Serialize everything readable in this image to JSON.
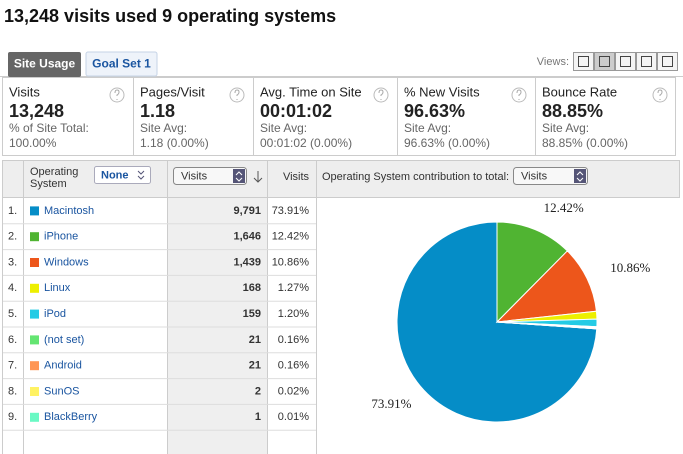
{
  "title": "13,248 visits used 9 operating systems",
  "tabs": [
    "Site Usage",
    "Goal Set 1"
  ],
  "views_label": "Views:",
  "metrics": [
    {
      "label": "Visits",
      "value": "13,248",
      "sub_label": "% of Site Total:",
      "sub_value": "100.00%"
    },
    {
      "label": "Pages/Visit",
      "value": "1.18",
      "sub_label": "Site Avg:",
      "sub_value": "1.18 (0.00%)"
    },
    {
      "label": "Avg. Time on Site",
      "value": "00:01:02",
      "sub_label": "Site Avg:",
      "sub_value": "00:01:02 (0.00%)"
    },
    {
      "label": "% New Visits",
      "value": "96.63%",
      "sub_label": "Site Avg:",
      "sub_value": "96.63% (0.00%)"
    },
    {
      "label": "Bounce Rate",
      "value": "88.85%",
      "sub_label": "Site Avg:",
      "sub_value": "88.85% (0.00%)"
    }
  ],
  "table": {
    "headers": {
      "dimension": [
        "Operating",
        "System"
      ],
      "segment": "None",
      "sort_metric": "Visits",
      "metric": "Visits",
      "contribution": "Operating System contribution to total:",
      "pie_metric": "Visits"
    },
    "rows": [
      {
        "index": "1.",
        "name": "Macintosh",
        "color": "#058dc7",
        "visits": {
          "value": 9791,
          "label": "9,791"
        },
        "percent": {
          "value": 73.91,
          "label": "73.91%"
        }
      },
      {
        "index": "2.",
        "name": "iPhone",
        "color": "#50b432",
        "visits": {
          "value": 1646,
          "label": "1,646"
        },
        "percent": {
          "value": 12.42,
          "label": "12.42%"
        }
      },
      {
        "index": "3.",
        "name": "Windows",
        "color": "#ed561b",
        "visits": {
          "value": 1439,
          "label": "1,439"
        },
        "percent": {
          "value": 10.86,
          "label": "10.86%"
        }
      },
      {
        "index": "4.",
        "name": "Linux",
        "color": "#edef00",
        "visits": {
          "value": 168,
          "label": "168"
        },
        "percent": {
          "value": 1.27,
          "label": "1.27%"
        }
      },
      {
        "index": "5.",
        "name": "iPod",
        "color": "#24cbe5",
        "visits": {
          "value": 159,
          "label": "159"
        },
        "percent": {
          "value": 1.2,
          "label": "1.20%"
        }
      },
      {
        "index": "6.",
        "name": "(not set)",
        "color": "#64e572",
        "visits": {
          "value": 21,
          "label": "21"
        },
        "percent": {
          "value": 0.16,
          "label": "0.16%"
        }
      },
      {
        "index": "7.",
        "name": "Android",
        "color": "#ff9655",
        "visits": {
          "value": 21,
          "label": "21"
        },
        "percent": {
          "value": 0.16,
          "label": "0.16%"
        }
      },
      {
        "index": "8.",
        "name": "SunOS",
        "color": "#fff263",
        "visits": {
          "value": 2,
          "label": "2"
        },
        "percent": {
          "value": 0.02,
          "label": "0.02%"
        }
      },
      {
        "index": "9.",
        "name": "BlackBerry",
        "color": "#6af9c4",
        "visits": {
          "value": 1,
          "label": "1"
        },
        "percent": {
          "value": 0.01,
          "label": "0.01%"
        }
      }
    ]
  }
}
